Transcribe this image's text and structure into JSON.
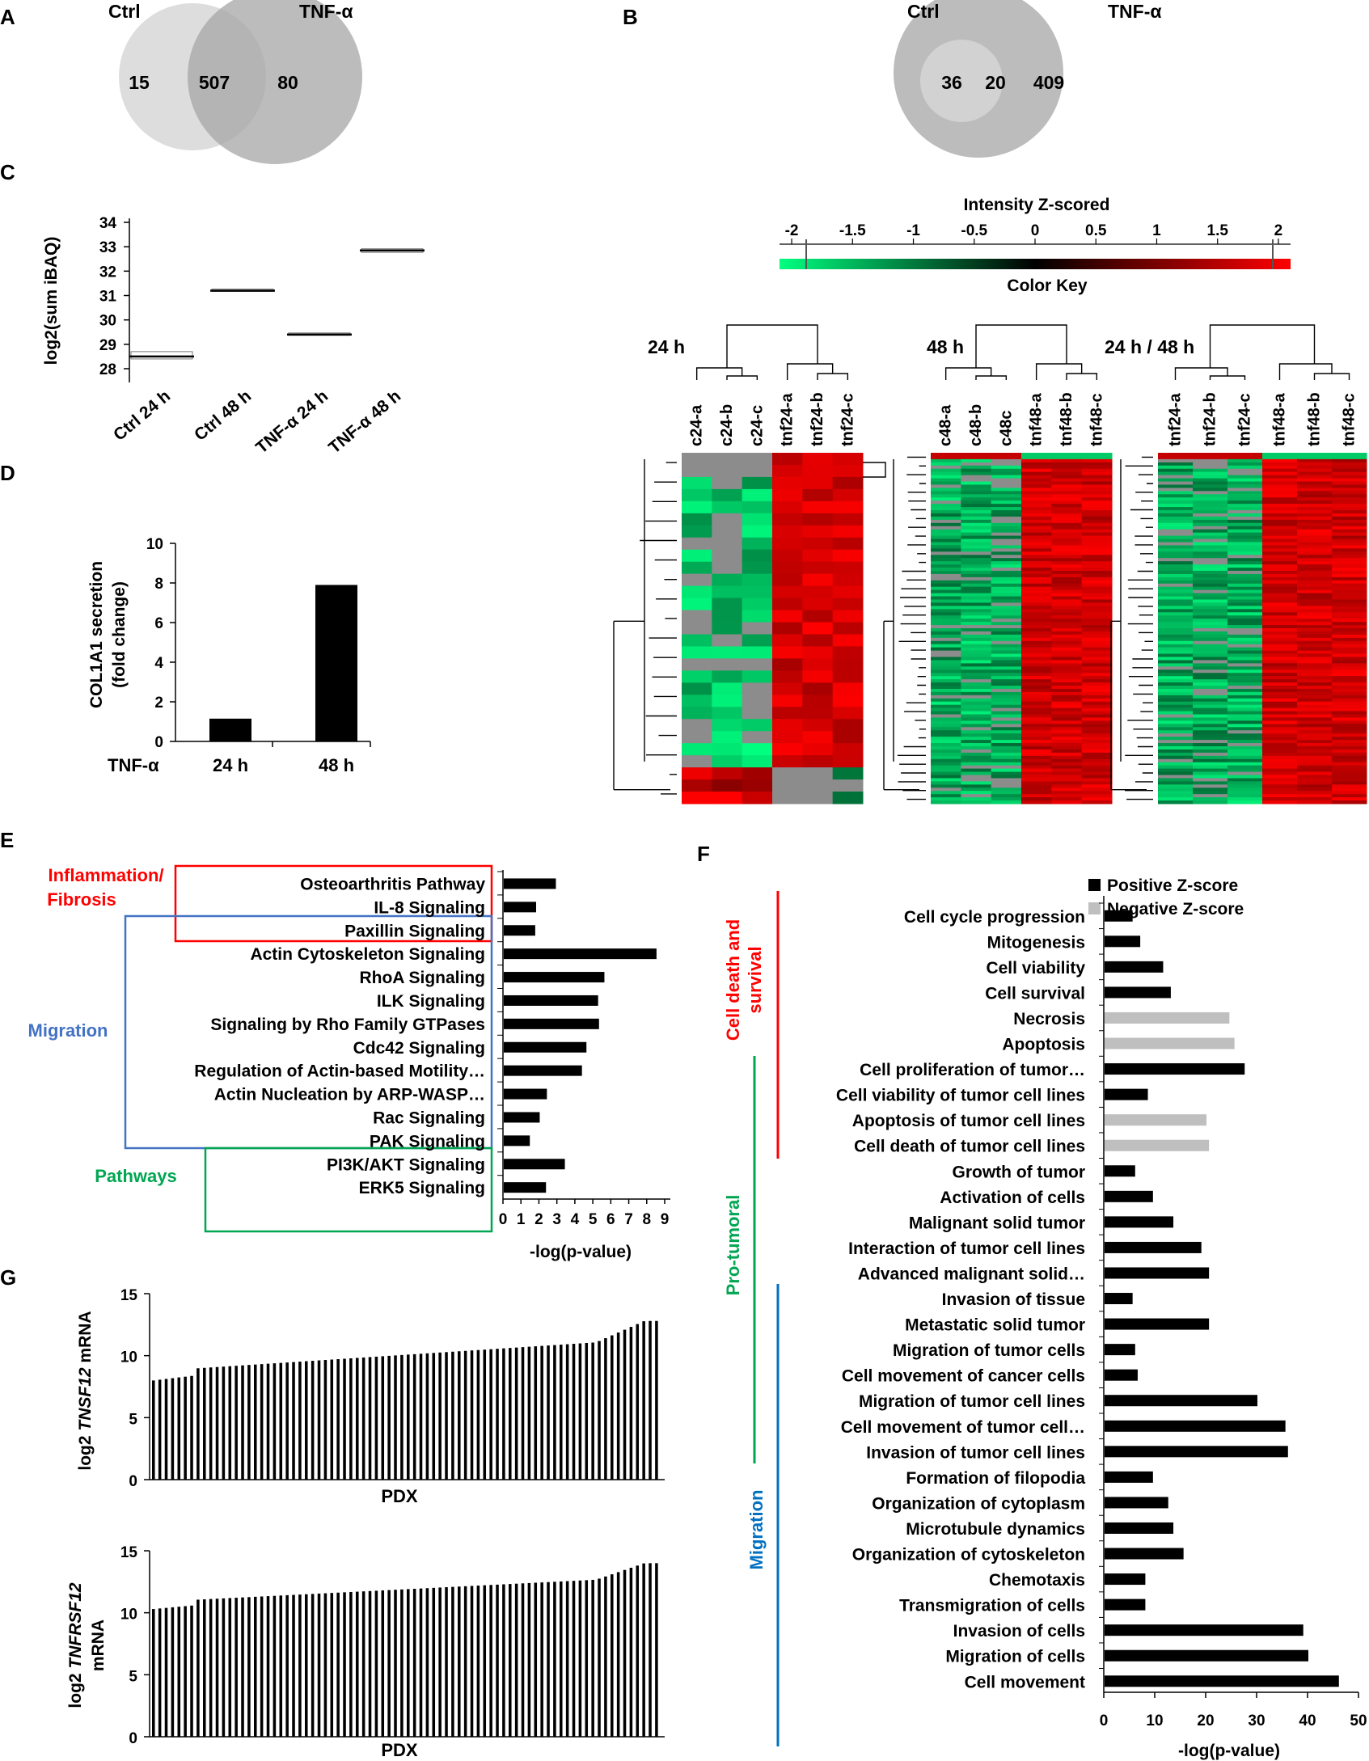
{
  "colors": {
    "black_bar": "#000000",
    "gray_bar": "#bfbfbf",
    "inflammation": "#ff0000",
    "migration": "#4472c4",
    "pathways": "#00a651",
    "heat_green": "#00ff80",
    "heat_red": "#ff0000",
    "heat_missing": "#8c8c8c"
  },
  "chart_data": [
    {
      "id": "A",
      "type": "venn",
      "panel_label": "A",
      "sets": [
        "Ctrl",
        "TNF-α"
      ],
      "counts": {
        "only_left": "15",
        "both": "507",
        "only_right": "80"
      }
    },
    {
      "id": "B",
      "type": "venn",
      "panel_label": "B",
      "sets": [
        "Ctrl",
        "TNF-α"
      ],
      "counts": {
        "only_left": "36",
        "both": "20",
        "only_right": "409"
      }
    },
    {
      "id": "C",
      "type": "box",
      "panel_label": "C",
      "ylabel": "log2(sum iBAQ)",
      "ylim": [
        28,
        34
      ],
      "yticks": [
        "28",
        "29",
        "30",
        "31",
        "32",
        "33",
        "34"
      ],
      "categories": [
        "Ctrl 24 h",
        "Ctrl 48 h",
        "TNF-α 24 h",
        "TNF-α 48 h"
      ],
      "medians": [
        28.5,
        31.2,
        29.4,
        32.85
      ],
      "ranges": [
        [
          28.4,
          28.7
        ],
        [
          31.2,
          31.2
        ],
        [
          29.4,
          29.4
        ],
        [
          32.75,
          32.9
        ]
      ]
    },
    {
      "id": "D",
      "type": "bar",
      "panel_label": "D",
      "ylabel_line1": "COL1A1 secretion",
      "ylabel_line2": "(fold change)",
      "xlabel_prefix": "TNF-α",
      "categories": [
        "24 h",
        "48 h"
      ],
      "values": [
        1.15,
        7.9
      ],
      "ylim": [
        0,
        10
      ],
      "yticks": [
        "0",
        "2",
        "4",
        "6",
        "8",
        "10"
      ]
    },
    {
      "id": "colorkey",
      "type": "colorbar",
      "title": "Intensity Z-scored",
      "caption": "Color Key",
      "range": [
        -2.1,
        2.1
      ],
      "ticks": [
        "-2",
        "-1.5",
        "-1",
        "-0.5",
        "0",
        "0.5",
        "1",
        "1.5",
        "2"
      ],
      "tick_values": [
        -2,
        -1.5,
        -1,
        -0.5,
        0,
        0.5,
        1,
        1.5,
        2
      ]
    },
    {
      "id": "heatmaps",
      "type": "heatmap",
      "blocks": [
        {
          "title": "24 h",
          "columns": [
            "c24-a",
            "c24-b",
            "c24-c",
            "tnf24-a",
            "tnf24-b",
            "tnf24-c"
          ]
        },
        {
          "title": "48 h",
          "columns": [
            "c48-a",
            "c48-b",
            "c48c",
            "tnf48-a",
            "tnf48-b",
            "tnf48-c"
          ]
        },
        {
          "title": "24 h / 48 h",
          "columns": [
            "tnf24-a",
            "tnf24-b",
            "tnf24-c",
            "tnf48-a",
            "tnf48-b",
            "tnf48-c"
          ]
        }
      ]
    },
    {
      "id": "E",
      "type": "bar",
      "orientation": "horizontal",
      "panel_label": "E",
      "categories": [
        "Osteoarthritis Pathway",
        "IL-8 Signaling",
        "Paxillin Signaling",
        "Actin Cytoskeleton Signaling",
        "RhoA Signaling",
        "ILK Signaling",
        "Signaling by Rho Family GTPases",
        "Cdc42 Signaling",
        "Regulation of Actin-based Motility…",
        "Actin Nucleation by ARP-WASP…",
        "Rac Signaling",
        "PAK Signaling",
        "PI3K/AKT Signaling",
        "ERK5 Signaling"
      ],
      "values": [
        2.9,
        1.8,
        1.75,
        8.5,
        5.6,
        5.25,
        5.3,
        4.6,
        4.35,
        2.4,
        2.0,
        1.45,
        3.4,
        2.35
      ],
      "xlim": [
        0,
        9
      ],
      "xticks": [
        "0",
        "1",
        "2",
        "3",
        "4",
        "5",
        "6",
        "7",
        "8",
        "9"
      ],
      "xlabel": "-log(p-value)",
      "groups": [
        {
          "label_line1": "Inflammation/",
          "label_line2": "Fibrosis",
          "color": "#ff0000"
        },
        {
          "label_line1": "Migration",
          "label_line2": "",
          "color": "#4472c4"
        },
        {
          "label_line1": "Pathways",
          "label_line2": "",
          "color": "#00a651"
        }
      ]
    },
    {
      "id": "F",
      "type": "bar",
      "orientation": "horizontal",
      "panel_label": "F",
      "legend": [
        "Positive Z-score",
        "Negative Z-score"
      ],
      "categories": [
        "Cell cycle progression",
        "Mitogenesis",
        "Cell viability",
        "Cell survival",
        "Necrosis",
        "Apoptosis",
        "Cell proliferation of tumor…",
        "Cell viability of tumor cell lines",
        "Apoptosis of tumor cell lines",
        "Cell death of tumor cell lines",
        "Growth of tumor",
        "Activation of cells",
        "Malignant solid tumor",
        "Interaction of tumor cell lines",
        "Advanced malignant solid…",
        "Invasion of tissue",
        "Metastatic solid tumor",
        "Migration of tumor cells",
        "Cell movement of cancer cells",
        "Migration of tumor cell lines",
        "Cell movement of tumor cell…",
        "Invasion of tumor cell lines",
        "Formation of filopodia",
        "Organization of cytoplasm",
        "Microtubule dynamics",
        "Organization of cytoskeleton",
        "Chemotaxis",
        "Transmigration of cells",
        "Invasion of cells",
        "Migration of cells",
        "Cell movement"
      ],
      "values": [
        5.5,
        7,
        11.5,
        13,
        24.5,
        25.5,
        27.5,
        8.5,
        20,
        20.5,
        6,
        9.5,
        13.5,
        19,
        20.5,
        5.5,
        20.5,
        6,
        6.5,
        30,
        35.5,
        36,
        9.5,
        12.5,
        13.5,
        15.5,
        8,
        8,
        39,
        40,
        46
      ],
      "sign": [
        "positive",
        "positive",
        "positive",
        "positive",
        "negative",
        "negative",
        "positive",
        "positive",
        "negative",
        "negative",
        "positive",
        "positive",
        "positive",
        "positive",
        "positive",
        "positive",
        "positive",
        "positive",
        "positive",
        "positive",
        "positive",
        "positive",
        "positive",
        "positive",
        "positive",
        "positive",
        "positive",
        "positive",
        "positive",
        "positive",
        "positive"
      ],
      "xlim": [
        0,
        50
      ],
      "xticks": [
        "0",
        "10",
        "20",
        "30",
        "40",
        "50"
      ],
      "xlabel": "-log(p-value)",
      "groups": [
        {
          "label_line1": "Cell death and",
          "label_line2": "survival",
          "color": "#ff0000"
        },
        {
          "label_line1": "Pro-tumoral",
          "label_line2": "",
          "color": "#00a651"
        },
        {
          "label_line1": "Migration",
          "label_line2": "",
          "color": "#0070c0"
        }
      ]
    },
    {
      "id": "G1",
      "type": "bar",
      "panel_label": "G",
      "ylabel_prefix": "log2 ",
      "ylabel_gene": "TNSF12",
      "ylabel_suffix": " mRNA",
      "xlabel": "PDX",
      "n_bars": 80,
      "value_start": 8.0,
      "value_end": 12.8,
      "ylim": [
        0,
        15
      ],
      "yticks": [
        "0",
        "5",
        "10",
        "15"
      ]
    },
    {
      "id": "G2",
      "type": "bar",
      "ylabel_prefix": "log2 ",
      "ylabel_gene": "TNFRSF12",
      "ylabel_suffix": "mRNA",
      "xlabel": "PDX",
      "n_bars": 80,
      "value_start": 10.3,
      "value_end": 14.0,
      "ylim": [
        0,
        15
      ],
      "yticks": [
        "0",
        "5",
        "10",
        "15"
      ]
    }
  ]
}
